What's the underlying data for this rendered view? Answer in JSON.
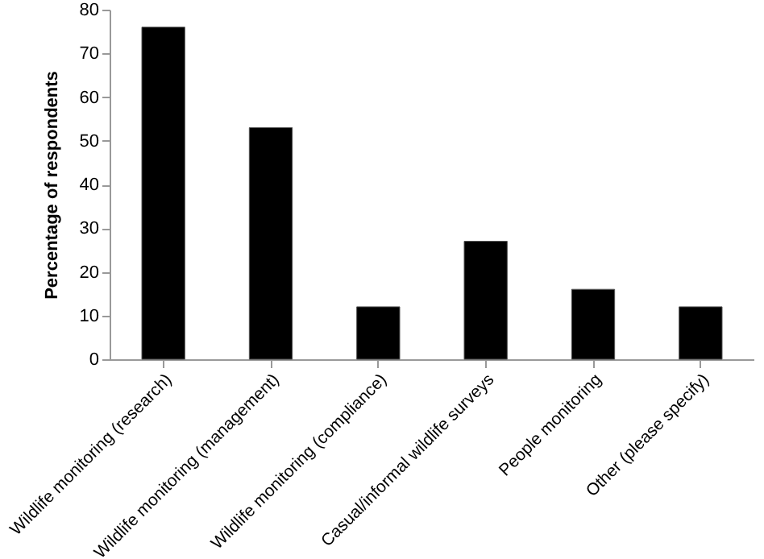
{
  "chart_data": {
    "type": "bar",
    "ylabel": "Percentage of respondents",
    "categories": [
      "Wildlife monitoring (research)",
      "Wildlife monitoring (management)",
      "Wildlife monitoring (compliance)",
      "Casual/informal wildlife surveys",
      "People monitoring",
      "Other (please specify)"
    ],
    "values": [
      76,
      53,
      12,
      27,
      16,
      12
    ],
    "color": "#000000",
    "ylim": [
      0,
      80
    ],
    "yticks": [
      0,
      10,
      20,
      30,
      40,
      50,
      60,
      70,
      80
    ],
    "grid": false
  }
}
